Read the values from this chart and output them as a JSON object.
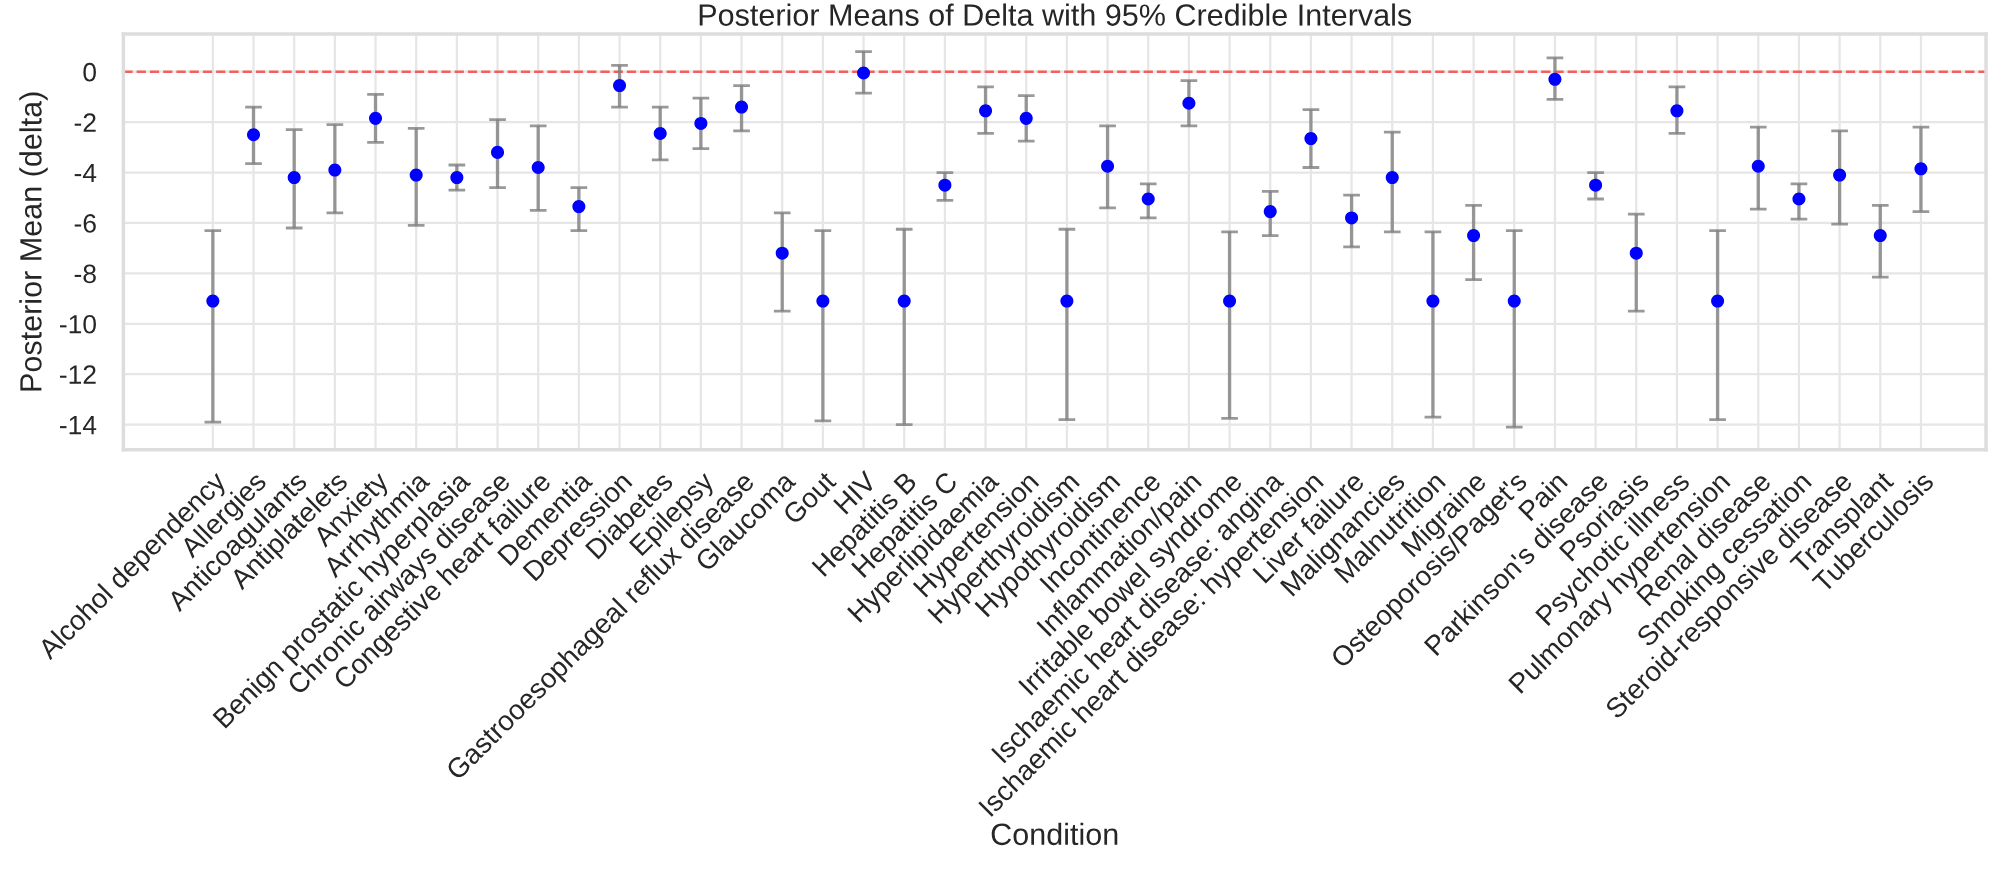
{
  "chart_data": {
    "type": "scatter",
    "title": "Posterior Means of Delta with 95% Credible Intervals",
    "xlabel": "Condition",
    "ylabel": "Posterior Mean (delta)",
    "categories": [
      "Alcohol dependency",
      "Allergies",
      "Anticoagulants",
      "Antiplatelets",
      "Anxiety",
      "Arrhythmia",
      "Benign prostatic hyperplasia",
      "Chronic airways disease",
      "Congestive heart failure",
      "Dementia",
      "Depression",
      "Diabetes",
      "Epilepsy",
      "Gastrooesophageal reflux disease",
      "Glaucoma",
      "Gout",
      "HIV",
      "Hepatitis B",
      "Hepatitis C",
      "Hyperlipidaemia",
      "Hypertension",
      "Hyperthyroidism",
      "Hypothyroidism",
      "Incontinence",
      "Inflammation/pain",
      "Irritable bowel syndrome",
      "Ischaemic heart disease: angina",
      "Ischaemic heart disease: hypertension",
      "Liver failure",
      "Malignancies",
      "Malnutrition",
      "Migraine",
      "Osteoporosis/Paget's",
      "Pain",
      "Parkinson's disease",
      "Psoriasis",
      "Psychotic illness",
      "Pulmonary hypertension",
      "Renal disease",
      "Smoking cessation",
      "Steroid-responsive disease",
      "Transplant",
      "Tuberculosis"
    ],
    "values": [
      -9.1,
      -2.5,
      -4.2,
      -3.9,
      -1.85,
      -4.1,
      -4.2,
      -3.2,
      -3.8,
      -5.35,
      -0.55,
      -2.45,
      -2.05,
      -1.4,
      -7.2,
      -9.1,
      -0.05,
      -9.1,
      -4.5,
      -1.55,
      -1.85,
      -9.1,
      -3.75,
      -5.05,
      -1.25,
      -9.1,
      -5.55,
      -2.65,
      -5.8,
      -4.2,
      -9.1,
      -6.5,
      -9.1,
      -0.3,
      -4.5,
      -7.2,
      -1.55,
      -9.1,
      -3.75,
      -5.05,
      -4.1,
      -6.5,
      -3.85
    ],
    "errors": [
      [
        -13.9,
        -6.3
      ],
      [
        -3.65,
        -1.4
      ],
      [
        -6.2,
        -2.3
      ],
      [
        -5.6,
        -2.1
      ],
      [
        -2.8,
        -0.9
      ],
      [
        -6.1,
        -2.25
      ],
      [
        -4.7,
        -3.7
      ],
      [
        -4.6,
        -1.9
      ],
      [
        -5.5,
        -2.15
      ],
      [
        -6.3,
        -4.6
      ],
      [
        -1.4,
        0.25
      ],
      [
        -3.5,
        -1.4
      ],
      [
        -3.05,
        -1.05
      ],
      [
        -2.35,
        -0.55
      ],
      [
        -9.5,
        -5.6
      ],
      [
        -13.85,
        -6.3
      ],
      [
        -0.85,
        0.8
      ],
      [
        -14.0,
        -6.25
      ],
      [
        -5.1,
        -4.0
      ],
      [
        -2.45,
        -0.6
      ],
      [
        -2.75,
        -0.95
      ],
      [
        -13.8,
        -6.25
      ],
      [
        -5.4,
        -2.15
      ],
      [
        -5.8,
        -4.45
      ],
      [
        -2.15,
        -0.35
      ],
      [
        -13.75,
        -6.35
      ],
      [
        -6.5,
        -4.75
      ],
      [
        -3.8,
        -1.5
      ],
      [
        -6.95,
        -4.9
      ],
      [
        -6.35,
        -2.4
      ],
      [
        -13.7,
        -6.35
      ],
      [
        -8.25,
        -5.3
      ],
      [
        -14.1,
        -6.3
      ],
      [
        -1.1,
        0.55
      ],
      [
        -5.05,
        -4.0
      ],
      [
        -9.5,
        -5.65
      ],
      [
        -2.45,
        -0.6
      ],
      [
        -13.8,
        -6.3
      ],
      [
        -5.45,
        -2.2
      ],
      [
        -5.85,
        -4.45
      ],
      [
        -6.05,
        -2.35
      ],
      [
        -8.15,
        -5.3
      ],
      [
        -5.55,
        -2.2
      ]
    ],
    "color": "#0000ff",
    "ylim": [
      -15,
      1.5
    ],
    "yticks": [
      0,
      -2,
      -4,
      -6,
      -8,
      -10,
      -12,
      -14
    ],
    "ref_lines": [
      {
        "axis": "y",
        "value": 0,
        "color": "#ff0000",
        "line_style": "dashed"
      }
    ],
    "grid": true,
    "marker": "circle"
  }
}
